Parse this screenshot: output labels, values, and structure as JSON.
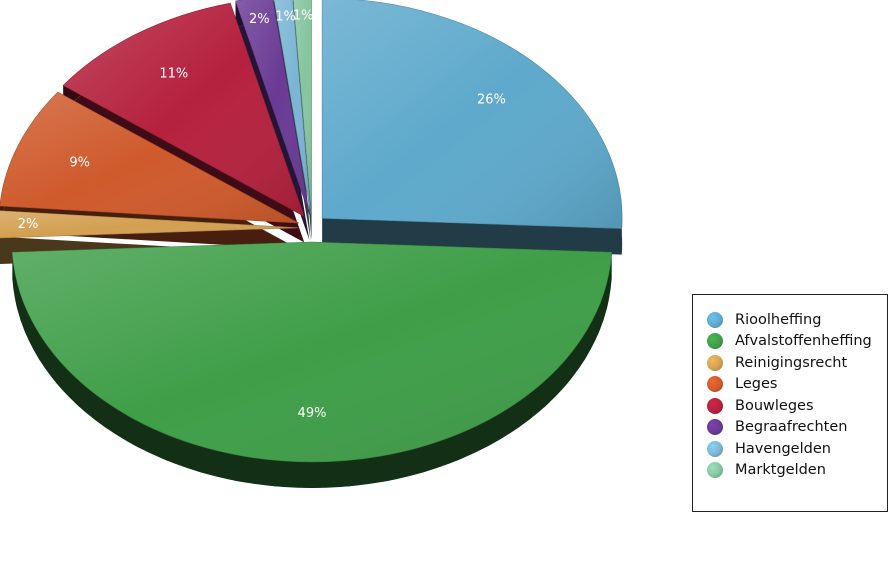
{
  "chart_data": {
    "type": "pie",
    "title": "",
    "categories": [
      "Rioolheffing",
      "Afvalstoffenheffing",
      "Reinigingsrecht",
      "Leges",
      "Bouwleges",
      "Begraafrechten",
      "Havengelden",
      "Marktgelden"
    ],
    "values": [
      26,
      49,
      2,
      9,
      11,
      2,
      1,
      1
    ],
    "labels": [
      "26%",
      "49%",
      "2%",
      "9%",
      "11%",
      "2%",
      "1%",
      "1%"
    ],
    "colors": [
      "#5ea9cc",
      "#3f9e48",
      "#d3a052",
      "#cf5a2c",
      "#b5213e",
      "#6a3a94",
      "#7bb5d4",
      "#86c5a0"
    ],
    "exploded": true,
    "legend_position": "right"
  }
}
